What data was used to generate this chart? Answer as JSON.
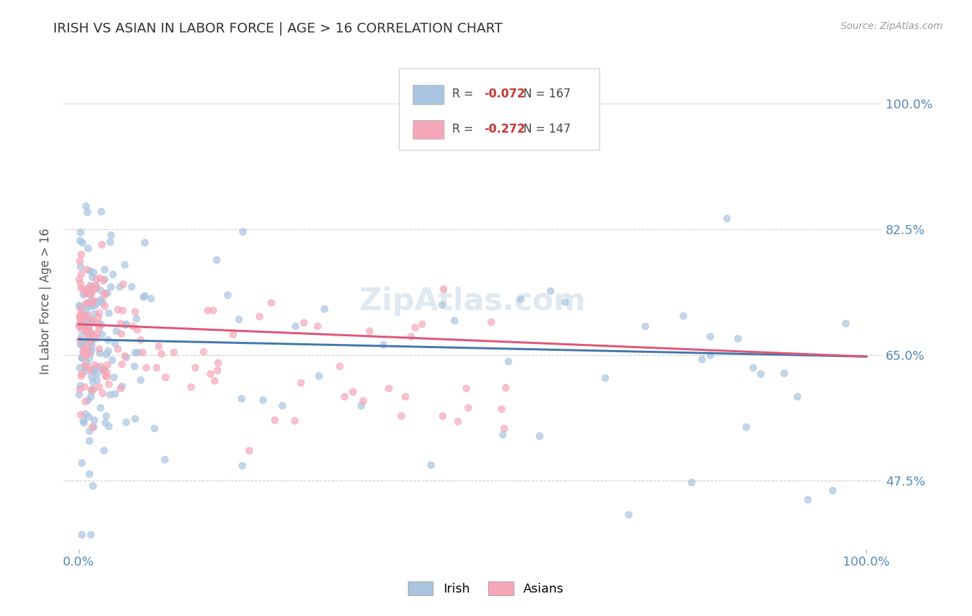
{
  "title": "IRISH VS ASIAN IN LABOR FORCE | AGE > 16 CORRELATION CHART",
  "source_text": "Source: ZipAtlas.com",
  "ylabel": "In Labor Force | Age > 16",
  "xlim": [
    -0.02,
    1.02
  ],
  "ylim": [
    0.38,
    1.07
  ],
  "yticks": [
    0.475,
    0.65,
    0.825,
    1.0
  ],
  "ytick_labels": [
    "47.5%",
    "65.0%",
    "82.5%",
    "100.0%"
  ],
  "xtick_labels": [
    "0.0%",
    "100.0%"
  ],
  "irish_color": "#a8c4e0",
  "asian_color": "#f4a7b9",
  "irish_line_color": "#4477aa",
  "asian_line_color": "#e05577",
  "irish_R": -0.072,
  "irish_N": 167,
  "asian_R": -0.272,
  "asian_N": 147,
  "background_color": "#ffffff",
  "grid_color": "#cccccc",
  "title_color": "#333333",
  "axis_label_color": "#555555",
  "tick_label_color": "#5588bb",
  "legend_R_color": "#cc3333",
  "legend_N_color": "#333333",
  "watermark_text": "ZipAtlas.com",
  "watermark_color": "#e0e8f0",
  "irish_line_start_y": 0.672,
  "irish_line_end_y": 0.648,
  "asian_line_start_y": 0.693,
  "asian_line_end_y": 0.648
}
